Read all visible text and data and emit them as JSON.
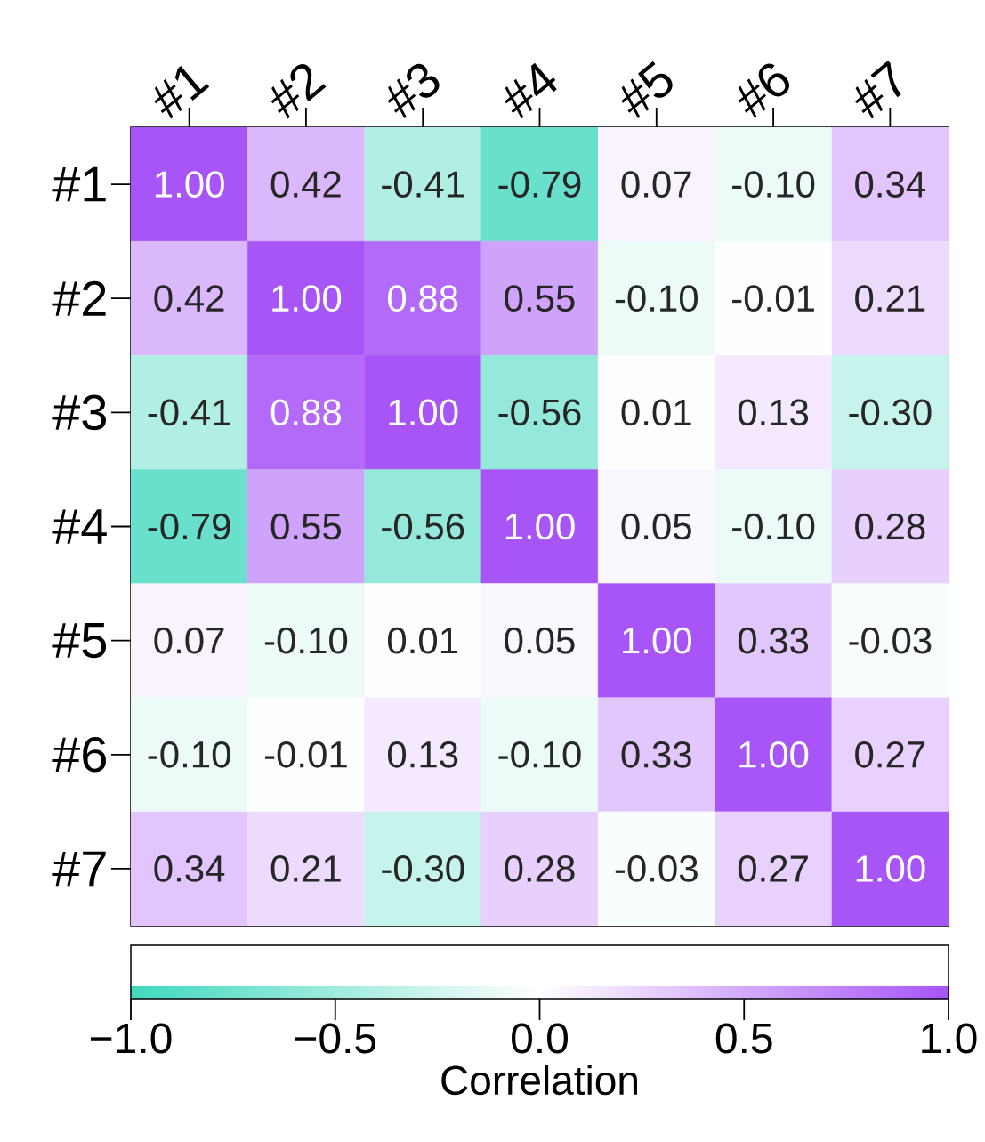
{
  "chart_data": {
    "type": "heatmap",
    "categories": [
      "#1",
      "#2",
      "#3",
      "#4",
      "#5",
      "#6",
      "#7"
    ],
    "y_categories": [
      "#1",
      "#2",
      "#3",
      "#4",
      "#5",
      "#6",
      "#7"
    ],
    "cells": [
      [
        1.0,
        0.42,
        -0.41,
        -0.79,
        0.07,
        -0.1,
        0.34
      ],
      [
        0.42,
        1.0,
        0.88,
        0.55,
        -0.1,
        -0.01,
        0.21
      ],
      [
        -0.41,
        0.88,
        1.0,
        -0.56,
        0.01,
        0.13,
        -0.3
      ],
      [
        -0.79,
        0.55,
        -0.56,
        1.0,
        0.05,
        -0.1,
        0.28
      ],
      [
        0.07,
        -0.1,
        0.01,
        0.05,
        1.0,
        0.33,
        -0.03
      ],
      [
        -0.1,
        -0.01,
        0.13,
        -0.1,
        0.33,
        1.0,
        0.27
      ],
      [
        0.34,
        0.21,
        -0.3,
        0.28,
        -0.03,
        0.27,
        1.0
      ]
    ],
    "cell_labels": [
      [
        "1.00",
        "0.42",
        "-0.41",
        "-0.79",
        "0.07",
        "-0.10",
        "0.34"
      ],
      [
        "0.42",
        "1.00",
        "0.88",
        "0.55",
        "-0.10",
        "-0.01",
        "0.21"
      ],
      [
        "-0.41",
        "0.88",
        "1.00",
        "-0.56",
        "0.01",
        "0.13",
        "-0.30"
      ],
      [
        "-0.79",
        "0.55",
        "-0.56",
        "1.00",
        "0.05",
        "-0.10",
        "0.28"
      ],
      [
        "0.07",
        "-0.10",
        "0.01",
        "0.05",
        "1.00",
        "0.33",
        "-0.03"
      ],
      [
        "-0.10",
        "-0.01",
        "0.13",
        "-0.10",
        "0.33",
        "1.00",
        "0.27"
      ],
      [
        "0.34",
        "0.21",
        "-0.30",
        "0.28",
        "-0.03",
        "0.27",
        "1.00"
      ]
    ],
    "clim": [
      -1,
      1
    ],
    "cticks": [
      {
        "value": -1,
        "label": "−1.0"
      },
      {
        "value": -0.5,
        "label": "−0.5"
      },
      {
        "value": 0,
        "label": "0.0"
      },
      {
        "value": 0.5,
        "label": "0.5"
      },
      {
        "value": 1,
        "label": "1.0"
      }
    ],
    "clabel": "Correlation"
  }
}
